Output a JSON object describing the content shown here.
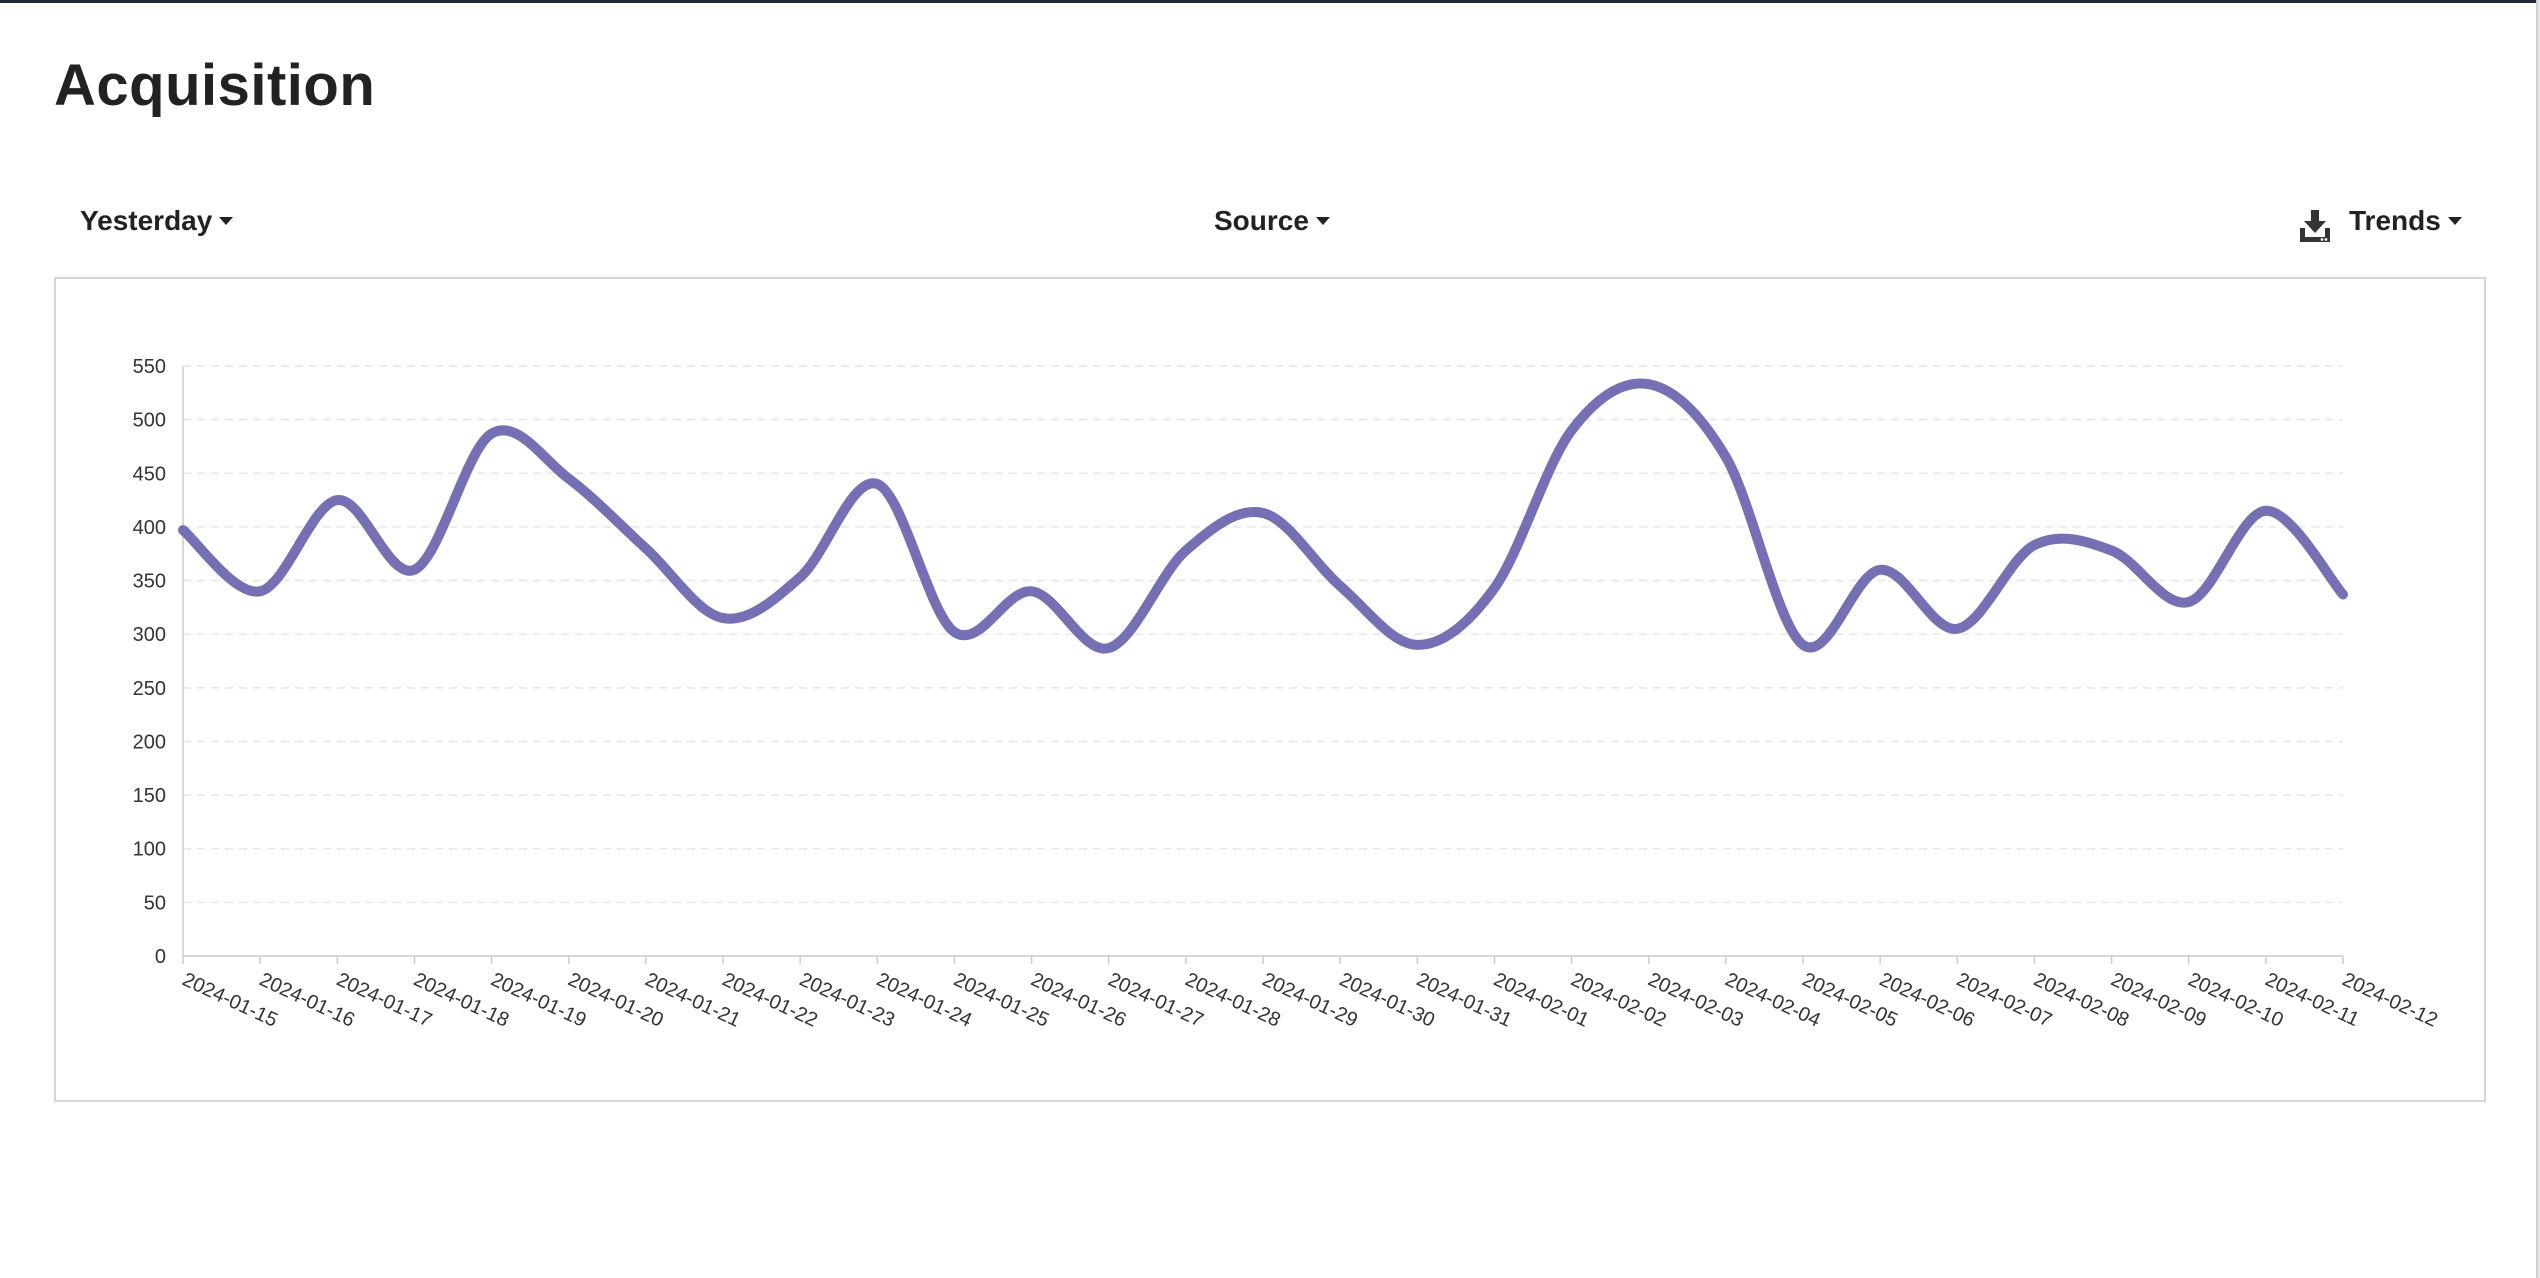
{
  "page": {
    "title": "Acquisition"
  },
  "toolbar": {
    "period_label": "Yesterday",
    "source_label": "Source",
    "trends_label": "Trends",
    "download_icon": "download-icon"
  },
  "colors": {
    "line": "#7570b3",
    "grid": "#e6e6e6",
    "axis": "#cccccc",
    "text": "#222222"
  },
  "chart_data": {
    "type": "line",
    "title": "",
    "xlabel": "",
    "ylabel": "",
    "ylim": [
      0,
      550
    ],
    "yticks": [
      0,
      50,
      100,
      150,
      200,
      250,
      300,
      350,
      400,
      450,
      500,
      550
    ],
    "grid": true,
    "x": [
      "2024-01-15",
      "2024-01-16",
      "2024-01-17",
      "2024-01-18",
      "2024-01-19",
      "2024-01-20",
      "2024-01-21",
      "2024-01-22",
      "2024-01-23",
      "2024-01-24",
      "2024-01-25",
      "2024-01-26",
      "2024-01-27",
      "2024-01-28",
      "2024-01-29",
      "2024-01-30",
      "2024-01-31",
      "2024-02-01",
      "2024-02-02",
      "2024-02-03",
      "2024-02-04",
      "2024-02-05",
      "2024-02-06",
      "2024-02-07",
      "2024-02-08",
      "2024-02-09",
      "2024-02-10",
      "2024-02-11",
      "2024-02-12"
    ],
    "series": [
      {
        "values": [
          397,
          340,
          425,
          360,
          487,
          445,
          380,
          315,
          353,
          440,
          302,
          340,
          287,
          378,
          413,
          345,
          290,
          343,
          490,
          533,
          465,
          290,
          360,
          305,
          383,
          378,
          330,
          415,
          337
        ]
      }
    ]
  }
}
